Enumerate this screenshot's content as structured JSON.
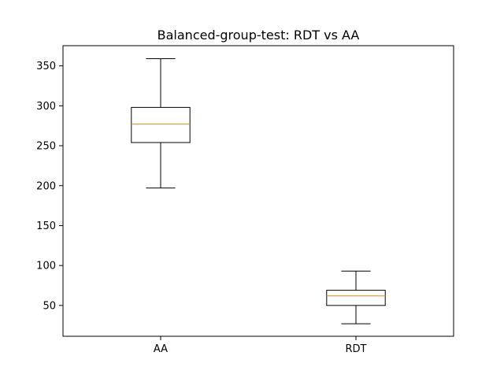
{
  "chart_data": {
    "type": "box",
    "title": "Balanced-group-test: RDT vs AA",
    "xlabel": "",
    "ylabel": "",
    "categories": [
      "AA",
      "RDT"
    ],
    "boxes": [
      {
        "category": "AA",
        "whisker_low": 197,
        "q1": 254,
        "median": 277,
        "q3": 298,
        "whisker_high": 359
      },
      {
        "category": "RDT",
        "whisker_low": 27,
        "q1": 50,
        "median": 62,
        "q3": 69,
        "whisker_high": 93
      }
    ],
    "y_ticks": [
      50,
      100,
      150,
      200,
      250,
      300,
      350
    ],
    "ylim": [
      11.4,
      375.3
    ],
    "grid": false,
    "colors": {
      "box": "#000000",
      "median": "#ff7f0e"
    }
  }
}
